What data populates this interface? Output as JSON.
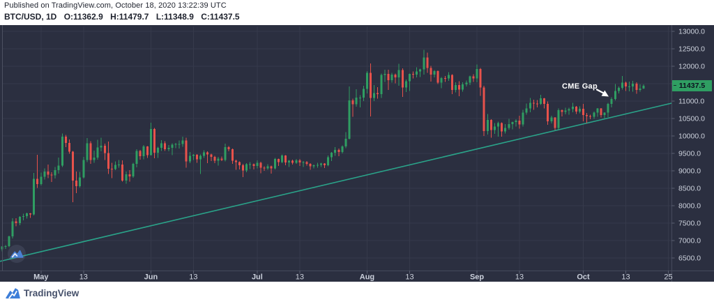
{
  "header": {
    "published_line": "Published on TradingView.com, October 18, 2020 13:22:39 UTC",
    "symbol_interval": "BTC/USD, 1D",
    "ohlc_labels": {
      "o": "O:",
      "h": "H:",
      "l": "L:",
      "c": "C:"
    },
    "ohlc_values": {
      "o": "11362.9",
      "h": "11479.7",
      "l": "11348.9",
      "c": "11437.5"
    }
  },
  "chart_data": {
    "type": "candlestick",
    "symbol": "BTC/USD",
    "interval": "1D",
    "start_date": "2020-04-20",
    "end_date": "2020-10-18",
    "y_axis": {
      "side": "right",
      "tick_step": 500,
      "ticks": [
        13000.0,
        12500.0,
        12000.0,
        11500.0,
        11000.0,
        10500.0,
        10000.0,
        9500.0,
        9000.0,
        8500.0,
        8000.0,
        7500.0,
        7000.0,
        6500.0
      ],
      "visible_min": 6140,
      "visible_max": 13140
    },
    "x_axis": {
      "labels": [
        {
          "text": "May",
          "day_index": 11,
          "bold": true
        },
        {
          "text": "13",
          "day_index": 23,
          "bold": false
        },
        {
          "text": "Jun",
          "day_index": 42,
          "bold": true
        },
        {
          "text": "13",
          "day_index": 54,
          "bold": false
        },
        {
          "text": "Jul",
          "day_index": 72,
          "bold": true
        },
        {
          "text": "13",
          "day_index": 84,
          "bold": false
        },
        {
          "text": "Aug",
          "day_index": 103,
          "bold": true
        },
        {
          "text": "13",
          "day_index": 115,
          "bold": false
        },
        {
          "text": "Sep",
          "day_index": 134,
          "bold": true
        },
        {
          "text": "13",
          "day_index": 146,
          "bold": false
        },
        {
          "text": "Oct",
          "day_index": 164,
          "bold": true
        },
        {
          "text": "13",
          "day_index": 176,
          "bold": false
        },
        {
          "text": "25",
          "day_index": 188,
          "bold": false
        }
      ]
    },
    "last_price": 11437.5,
    "last_price_label": "11437.5",
    "annotations": {
      "cme_gap": {
        "text": "CME Gap",
        "arrow": "points down-right toward the Oct 8-9 gap"
      },
      "trendline": {
        "day_index_start": -1.6,
        "price_start": 6380,
        "day_index_end": 188.9,
        "price_end": 10940
      }
    },
    "colors": {
      "background": "#2b2f40",
      "grid": "#363a4b",
      "up": "#2f9e62",
      "down": "#e8524b",
      "trendline": "#2aa389",
      "axis_text": "#ccd1dc",
      "badge_bg": "#2f9e62",
      "badge_text": "#0c111f"
    },
    "series_ohlc": [
      [
        6755,
        6845,
        6695,
        6830
      ],
      [
        6830,
        6875,
        6760,
        6842
      ],
      [
        6842,
        7145,
        6815,
        7116
      ],
      [
        7116,
        7640,
        7060,
        7550
      ],
      [
        7550,
        7640,
        7410,
        7505
      ],
      [
        7505,
        7705,
        7440,
        7680
      ],
      [
        7680,
        7775,
        7585,
        7700
      ],
      [
        7700,
        7805,
        7630,
        7780
      ],
      [
        7780,
        7795,
        7655,
        7750
      ],
      [
        7750,
        8945,
        7720,
        8770
      ],
      [
        8770,
        9465,
        8515,
        8620
      ],
      [
        8620,
        8955,
        8585,
        8830
      ],
      [
        8830,
        9075,
        8755,
        8980
      ],
      [
        8980,
        9185,
        8795,
        8890
      ],
      [
        8890,
        8965,
        8685,
        8870
      ],
      [
        8870,
        9115,
        8785,
        9020
      ],
      [
        9020,
        9385,
        8925,
        9150
      ],
      [
        9150,
        10075,
        9110,
        9980
      ],
      [
        9980,
        10035,
        9685,
        9800
      ],
      [
        9800,
        9905,
        9495,
        9550
      ],
      [
        9550,
        9575,
        8105,
        8720
      ],
      [
        8720,
        8985,
        8365,
        8560
      ],
      [
        8560,
        8975,
        8525,
        8810
      ],
      [
        8810,
        9405,
        8785,
        9310
      ],
      [
        9310,
        9945,
        9255,
        9790
      ],
      [
        9790,
        9855,
        9205,
        9310
      ],
      [
        9310,
        9585,
        9235,
        9380
      ],
      [
        9380,
        9895,
        9325,
        9670
      ],
      [
        9670,
        9955,
        9565,
        9720
      ],
      [
        9720,
        9785,
        9315,
        9510
      ],
      [
        9510,
        9845,
        8915,
        9060
      ],
      [
        9060,
        9235,
        8795,
        9055
      ],
      [
        9055,
        9275,
        9025,
        9170
      ],
      [
        9170,
        9315,
        9095,
        9180
      ],
      [
        9180,
        9305,
        8695,
        8720
      ],
      [
        8720,
        8985,
        8635,
        8900
      ],
      [
        8900,
        9025,
        8695,
        8840
      ],
      [
        8840,
        9235,
        8805,
        9200
      ],
      [
        9200,
        9625,
        9105,
        9570
      ],
      [
        9570,
        9605,
        9325,
        9420
      ],
      [
        9420,
        9745,
        9330,
        9700
      ],
      [
        9700,
        9715,
        9375,
        9450
      ],
      [
        9450,
        10385,
        9445,
        10200
      ],
      [
        10200,
        10235,
        9365,
        9520
      ],
      [
        9520,
        9695,
        9375,
        9660
      ],
      [
        9660,
        9885,
        9575,
        9790
      ],
      [
        9790,
        9855,
        9575,
        9620
      ],
      [
        9620,
        9745,
        9565,
        9660
      ],
      [
        9660,
        9795,
        9455,
        9750
      ],
      [
        9750,
        9805,
        9655,
        9770
      ],
      [
        9770,
        9875,
        9645,
        9770
      ],
      [
        9770,
        9985,
        9690,
        9870
      ],
      [
        9870,
        9955,
        9095,
        9270
      ],
      [
        9270,
        9545,
        9225,
        9430
      ],
      [
        9430,
        9485,
        9315,
        9460
      ],
      [
        9460,
        9485,
        9235,
        9330
      ],
      [
        9330,
        9475,
        8910,
        9430
      ],
      [
        9430,
        9595,
        9375,
        9530
      ],
      [
        9530,
        9565,
        9225,
        9470
      ],
      [
        9470,
        9495,
        9285,
        9400
      ],
      [
        9400,
        9435,
        9225,
        9290
      ],
      [
        9290,
        9405,
        9155,
        9350
      ],
      [
        9350,
        9415,
        9285,
        9310
      ],
      [
        9310,
        9785,
        9275,
        9680
      ],
      [
        9680,
        9715,
        9565,
        9620
      ],
      [
        9620,
        9645,
        9205,
        9290
      ],
      [
        9290,
        9325,
        9035,
        9250
      ],
      [
        9250,
        9275,
        9045,
        9160
      ],
      [
        9160,
        9205,
        8825,
        9010
      ],
      [
        9010,
        9225,
        8965,
        9190
      ],
      [
        9190,
        9255,
        9055,
        9190
      ],
      [
        9190,
        9215,
        9045,
        9140
      ],
      [
        9140,
        9305,
        9075,
        9230
      ],
      [
        9230,
        9265,
        8935,
        9090
      ],
      [
        9090,
        9135,
        9005,
        9070
      ],
      [
        9070,
        9195,
        9035,
        9130
      ],
      [
        9130,
        9155,
        8925,
        9070
      ],
      [
        9070,
        9375,
        9045,
        9340
      ],
      [
        9340,
        9355,
        9145,
        9250
      ],
      [
        9250,
        9475,
        9225,
        9440
      ],
      [
        9440,
        9455,
        9165,
        9240
      ],
      [
        9240,
        9315,
        9115,
        9290
      ],
      [
        9290,
        9325,
        9185,
        9230
      ],
      [
        9230,
        9345,
        9205,
        9300
      ],
      [
        9300,
        9345,
        9145,
        9240
      ],
      [
        9240,
        9285,
        9115,
        9250
      ],
      [
        9250,
        9285,
        9155,
        9200
      ],
      [
        9200,
        9225,
        9035,
        9130
      ],
      [
        9130,
        9185,
        9075,
        9160
      ],
      [
        9160,
        9235,
        9095,
        9170
      ],
      [
        9170,
        9235,
        9115,
        9210
      ],
      [
        9210,
        9225,
        9085,
        9160
      ],
      [
        9160,
        9445,
        9135,
        9390
      ],
      [
        9390,
        9545,
        9285,
        9520
      ],
      [
        9520,
        9685,
        9435,
        9600
      ],
      [
        9600,
        9645,
        9425,
        9540
      ],
      [
        9540,
        9735,
        9505,
        9700
      ],
      [
        9700,
        10115,
        9655,
        9920
      ],
      [
        9920,
        11425,
        9905,
        11020
      ],
      [
        11020,
        11075,
        10555,
        10910
      ],
      [
        10910,
        11345,
        10845,
        11100
      ],
      [
        11100,
        11175,
        10825,
        11100
      ],
      [
        11100,
        11445,
        11005,
        11350
      ],
      [
        11350,
        11865,
        11225,
        11810
      ],
      [
        11810,
        12085,
        10565,
        11090
      ],
      [
        11090,
        11465,
        11005,
        11230
      ],
      [
        11230,
        11405,
        11075,
        11200
      ],
      [
        11200,
        11795,
        11095,
        11750
      ],
      [
        11750,
        11905,
        11555,
        11780
      ],
      [
        11780,
        11905,
        11325,
        11600
      ],
      [
        11600,
        11815,
        11535,
        11760
      ],
      [
        11760,
        11795,
        11515,
        11680
      ],
      [
        11680,
        12075,
        11445,
        11890
      ],
      [
        11890,
        11945,
        11125,
        11390
      ],
      [
        11390,
        11625,
        11265,
        11570
      ],
      [
        11570,
        11795,
        11295,
        11780
      ],
      [
        11780,
        11855,
        11655,
        11760
      ],
      [
        11760,
        11975,
        11685,
        11850
      ],
      [
        11850,
        11935,
        11695,
        11910
      ],
      [
        11910,
        12475,
        11765,
        12250
      ],
      [
        12250,
        12395,
        11815,
        11950
      ],
      [
        11950,
        12015,
        11565,
        11760
      ],
      [
        11760,
        11895,
        11685,
        11860
      ],
      [
        11860,
        11885,
        11495,
        11530
      ],
      [
        11530,
        11695,
        11375,
        11660
      ],
      [
        11660,
        11725,
        11555,
        11650
      ],
      [
        11650,
        11835,
        11585,
        11750
      ],
      [
        11750,
        11775,
        11205,
        11320
      ],
      [
        11320,
        11545,
        11255,
        11460
      ],
      [
        11460,
        11575,
        11145,
        11330
      ],
      [
        11330,
        11545,
        11275,
        11480
      ],
      [
        11480,
        11595,
        11425,
        11530
      ],
      [
        11530,
        11735,
        11465,
        11710
      ],
      [
        11710,
        11775,
        11555,
        11650
      ],
      [
        11650,
        12055,
        11545,
        11920
      ],
      [
        11920,
        11955,
        11155,
        11390
      ],
      [
        11390,
        11445,
        10005,
        10140
      ],
      [
        10140,
        10635,
        10045,
        10460
      ],
      [
        10460,
        10485,
        9955,
        10170
      ],
      [
        10170,
        10375,
        10065,
        10270
      ],
      [
        10270,
        10415,
        9985,
        10370
      ],
      [
        10370,
        10395,
        9985,
        10130
      ],
      [
        10130,
        10345,
        10075,
        10230
      ],
      [
        10230,
        10495,
        10185,
        10340
      ],
      [
        10340,
        10415,
        10195,
        10400
      ],
      [
        10400,
        10485,
        10275,
        10440
      ],
      [
        10440,
        10585,
        10215,
        10330
      ],
      [
        10330,
        10755,
        10275,
        10670
      ],
      [
        10670,
        10935,
        10615,
        10790
      ],
      [
        10790,
        11095,
        10685,
        10950
      ],
      [
        10950,
        11045,
        10755,
        10930
      ],
      [
        10930,
        11035,
        10825,
        10920
      ],
      [
        10920,
        11185,
        10895,
        11080
      ],
      [
        11080,
        11095,
        10795,
        10920
      ],
      [
        10920,
        10995,
        10325,
        10420
      ],
      [
        10420,
        10585,
        10365,
        10530
      ],
      [
        10530,
        10545,
        10175,
        10230
      ],
      [
        10230,
        10795,
        10195,
        10740
      ],
      [
        10740,
        10765,
        10565,
        10690
      ],
      [
        10690,
        10815,
        10625,
        10730
      ],
      [
        10730,
        10815,
        10615,
        10770
      ],
      [
        10770,
        10955,
        10685,
        10840
      ],
      [
        10840,
        10865,
        10635,
        10700
      ],
      [
        10700,
        10855,
        10655,
        10780
      ],
      [
        10780,
        10925,
        10425,
        10600
      ],
      [
        10600,
        10665,
        10375,
        10570
      ],
      [
        10570,
        10615,
        10485,
        10550
      ],
      [
        10550,
        10705,
        10495,
        10670
      ],
      [
        10670,
        10805,
        10555,
        10790
      ],
      [
        10790,
        10805,
        10535,
        10600
      ],
      [
        10600,
        10685,
        10515,
        10670
      ],
      [
        10670,
        10955,
        10545,
        10920
      ],
      [
        10920,
        11115,
        10825,
        11060
      ],
      [
        11060,
        11495,
        11025,
        11290
      ],
      [
        11290,
        11425,
        11225,
        11380
      ],
      [
        11380,
        11725,
        11335,
        11530
      ],
      [
        11530,
        11565,
        11295,
        11420
      ],
      [
        11420,
        11565,
        11285,
        11420
      ],
      [
        11420,
        11585,
        11275,
        11500
      ],
      [
        11500,
        11545,
        11215,
        11320
      ],
      [
        11320,
        11485,
        11275,
        11360
      ],
      [
        11362.9,
        11479.7,
        11348.9,
        11437.5
      ]
    ]
  },
  "footer": {
    "brand": "TradingView"
  }
}
